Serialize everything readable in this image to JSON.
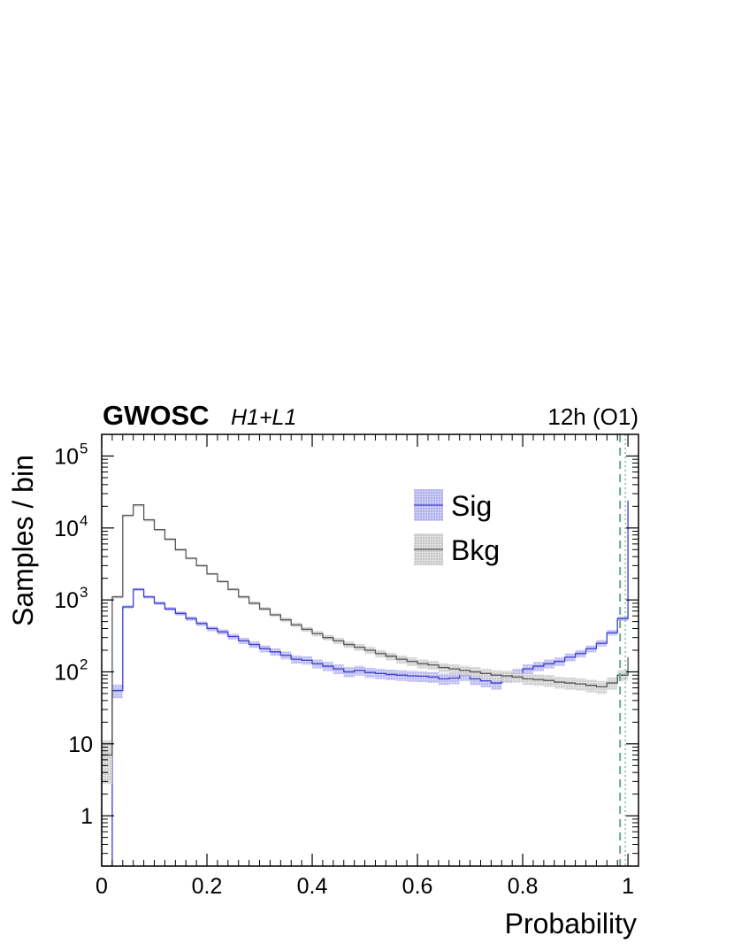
{
  "header": {
    "title": "GWOSC",
    "subtitle": "H1+L1",
    "right_text": "12h (O1)"
  },
  "chart_data": {
    "type": "histogram",
    "xlabel": "Probability",
    "ylabel": "Samples / bin",
    "xlim": [
      0,
      1.02
    ],
    "ylim": [
      0.2,
      200000
    ],
    "y_scale": "log",
    "x_ticks": [
      "0",
      "0.2",
      "0.4",
      "0.6",
      "0.8",
      "1"
    ],
    "y_ticks": [
      {
        "value": 1,
        "label": "1"
      },
      {
        "value": 10,
        "label": "10"
      },
      {
        "value": 100,
        "label": "10",
        "exp": "2"
      },
      {
        "value": 1000,
        "label": "10",
        "exp": "3"
      },
      {
        "value": 10000,
        "label": "10",
        "exp": "4"
      },
      {
        "value": 100000,
        "label": "10",
        "exp": "5"
      }
    ],
    "bin_edges": [
      0.0,
      0.02,
      0.04,
      0.06,
      0.08,
      0.1,
      0.12,
      0.14,
      0.16,
      0.18,
      0.2,
      0.22,
      0.24,
      0.26,
      0.28,
      0.3,
      0.32,
      0.34,
      0.36,
      0.38,
      0.4,
      0.42,
      0.44,
      0.46,
      0.48,
      0.5,
      0.52,
      0.54,
      0.56,
      0.58,
      0.6,
      0.62,
      0.64,
      0.66,
      0.68,
      0.7,
      0.72,
      0.74,
      0.76,
      0.78,
      0.8,
      0.82,
      0.84,
      0.86,
      0.88,
      0.9,
      0.92,
      0.94,
      0.96,
      0.98,
      1.0
    ],
    "series": [
      {
        "name": "Sig",
        "color": "#3b3bd6",
        "fill": "#b8b8f0",
        "values": [
          0,
          55,
          800,
          1400,
          1100,
          900,
          750,
          650,
          550,
          470,
          400,
          360,
          310,
          270,
          240,
          210,
          190,
          170,
          150,
          145,
          130,
          120,
          110,
          100,
          105,
          98,
          95,
          92,
          90,
          88,
          87,
          85,
          80,
          82,
          90,
          80,
          75,
          70,
          85,
          95,
          110,
          120,
          130,
          140,
          160,
          180,
          210,
          250,
          350,
          550,
          24000
        ]
      },
      {
        "name": "Bkg",
        "color": "#555555",
        "fill": "#cfcfcf",
        "values": [
          7,
          1100,
          15000,
          21000,
          13000,
          9500,
          7000,
          5000,
          3800,
          3000,
          2300,
          1800,
          1400,
          1100,
          900,
          750,
          620,
          530,
          450,
          390,
          340,
          300,
          270,
          240,
          220,
          200,
          180,
          165,
          150,
          140,
          130,
          125,
          115,
          110,
          105,
          100,
          95,
          90,
          88,
          85,
          80,
          78,
          76,
          72,
          70,
          68,
          65,
          62,
          70,
          90,
          160
        ]
      }
    ],
    "threshold_lines": [
      0.985,
      0.995
    ],
    "legend": {
      "position": "top-center",
      "entries": [
        "Sig",
        "Bkg"
      ]
    }
  }
}
